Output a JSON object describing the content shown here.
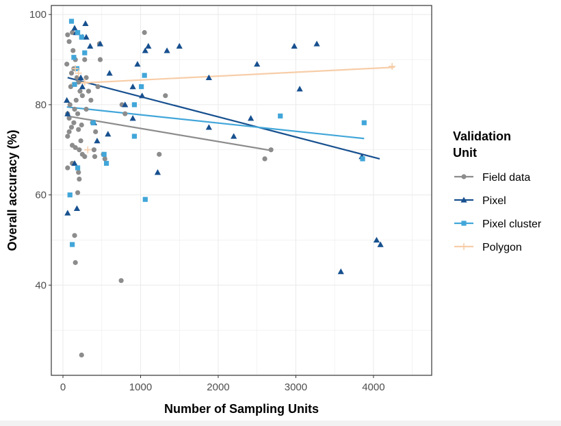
{
  "chart_data": {
    "type": "scatter",
    "xlabel": "Number of Sampling Units",
    "ylabel": "Overall accuracy (%)",
    "xlim": [
      -150,
      4750
    ],
    "ylim": [
      20,
      102
    ],
    "x_ticks": [
      0,
      1000,
      2000,
      3000,
      4000
    ],
    "x_tick_labels": [
      "0",
      "1000",
      "2000",
      "3000",
      "4000"
    ],
    "y_ticks": [
      40,
      60,
      80,
      100
    ],
    "y_tick_labels": [
      "40",
      "60",
      "80",
      "100"
    ],
    "grid": true,
    "legend": {
      "title_lines": [
        "Validation",
        "Unit"
      ],
      "placement": "right"
    },
    "series": [
      {
        "name": "Field data",
        "color": "#8c8c8c",
        "marker": "circle",
        "points": [
          [
            60,
            95.5
          ],
          [
            80,
            94
          ],
          [
            50,
            89
          ],
          [
            120,
            96
          ],
          [
            130,
            92
          ],
          [
            160,
            90
          ],
          [
            140,
            88
          ],
          [
            110,
            87
          ],
          [
            180,
            86
          ],
          [
            200,
            85
          ],
          [
            100,
            84
          ],
          [
            220,
            83
          ],
          [
            250,
            82
          ],
          [
            170,
            81
          ],
          [
            90,
            80
          ],
          [
            150,
            79
          ],
          [
            190,
            78
          ],
          [
            60,
            78
          ],
          [
            80,
            77
          ],
          [
            140,
            76
          ],
          [
            240,
            75.5
          ],
          [
            110,
            75
          ],
          [
            200,
            74.5
          ],
          [
            80,
            74
          ],
          [
            60,
            73
          ],
          [
            230,
            72
          ],
          [
            120,
            71
          ],
          [
            160,
            70.5
          ],
          [
            210,
            70
          ],
          [
            250,
            69
          ],
          [
            280,
            68.5
          ],
          [
            120,
            67
          ],
          [
            60,
            66
          ],
          [
            200,
            65
          ],
          [
            210,
            63.5
          ],
          [
            280,
            90
          ],
          [
            300,
            86
          ],
          [
            330,
            83
          ],
          [
            360,
            81
          ],
          [
            300,
            79
          ],
          [
            380,
            76
          ],
          [
            420,
            74
          ],
          [
            400,
            70
          ],
          [
            410,
            68.5
          ],
          [
            470,
            93.5
          ],
          [
            480,
            90
          ],
          [
            450,
            84
          ],
          [
            520,
            69
          ],
          [
            540,
            68
          ],
          [
            760,
            80
          ],
          [
            800,
            78
          ],
          [
            1050,
            96
          ],
          [
            1320,
            82
          ],
          [
            1240,
            69
          ],
          [
            2600,
            68
          ],
          [
            2680,
            70
          ],
          [
            750,
            41
          ],
          [
            150,
            51
          ],
          [
            160,
            45
          ],
          [
            240,
            24.5
          ],
          [
            190,
            60.5
          ]
        ],
        "trend": [
          [
            50,
            77.5
          ],
          [
            2700,
            69.8
          ]
        ]
      },
      {
        "name": "Pixel",
        "color": "#17508f",
        "marker": "triangle",
        "points": [
          [
            150,
            97
          ],
          [
            170,
            96
          ],
          [
            290,
            98
          ],
          [
            250,
            95
          ],
          [
            300,
            95
          ],
          [
            350,
            93
          ],
          [
            480,
            93.5
          ],
          [
            1100,
            93
          ],
          [
            1060,
            92
          ],
          [
            1340,
            92
          ],
          [
            1500,
            93
          ],
          [
            2980,
            93
          ],
          [
            3270,
            93.5
          ],
          [
            960,
            89
          ],
          [
            2500,
            89
          ],
          [
            600,
            87
          ],
          [
            230,
            86
          ],
          [
            250,
            84
          ],
          [
            1880,
            86
          ],
          [
            900,
            84
          ],
          [
            3050,
            83.5
          ],
          [
            1020,
            82
          ],
          [
            50,
            81
          ],
          [
            800,
            80
          ],
          [
            60,
            78
          ],
          [
            2420,
            77
          ],
          [
            900,
            77
          ],
          [
            400,
            76
          ],
          [
            1880,
            75
          ],
          [
            2200,
            73
          ],
          [
            580,
            73.5
          ],
          [
            440,
            72
          ],
          [
            150,
            67
          ],
          [
            1220,
            65
          ],
          [
            3850,
            68.5
          ],
          [
            60,
            56
          ],
          [
            180,
            57
          ],
          [
            3580,
            43
          ],
          [
            4040,
            50
          ],
          [
            4090,
            49
          ]
        ],
        "trend": [
          [
            60,
            86
          ],
          [
            4080,
            68
          ]
        ]
      },
      {
        "name": "Pixel cluster",
        "color": "#41a6d9",
        "marker": "square",
        "points": [
          [
            110,
            98.5
          ],
          [
            190,
            96
          ],
          [
            240,
            95
          ],
          [
            140,
            90.5
          ],
          [
            280,
            91.5
          ],
          [
            180,
            88
          ],
          [
            1050,
            86.5
          ],
          [
            1010,
            84
          ],
          [
            150,
            84.5
          ],
          [
            920,
            80
          ],
          [
            2800,
            77.5
          ],
          [
            390,
            76
          ],
          [
            3880,
            76
          ],
          [
            920,
            73
          ],
          [
            530,
            69
          ],
          [
            3860,
            68
          ],
          [
            560,
            67
          ],
          [
            190,
            66
          ],
          [
            90,
            60
          ],
          [
            1060,
            59
          ],
          [
            120,
            49
          ]
        ],
        "trend": [
          [
            50,
            79.5
          ],
          [
            3880,
            72.5
          ]
        ]
      },
      {
        "name": "Polygon",
        "color": "#f7cda8",
        "marker": "plus",
        "points": [
          [
            160,
            88
          ],
          [
            200,
            87
          ],
          [
            280,
            85
          ],
          [
            320,
            70
          ],
          [
            4240,
            88.5
          ]
        ],
        "trend": [
          [
            100,
            84.7
          ],
          [
            4270,
            88.3
          ]
        ]
      }
    ]
  }
}
